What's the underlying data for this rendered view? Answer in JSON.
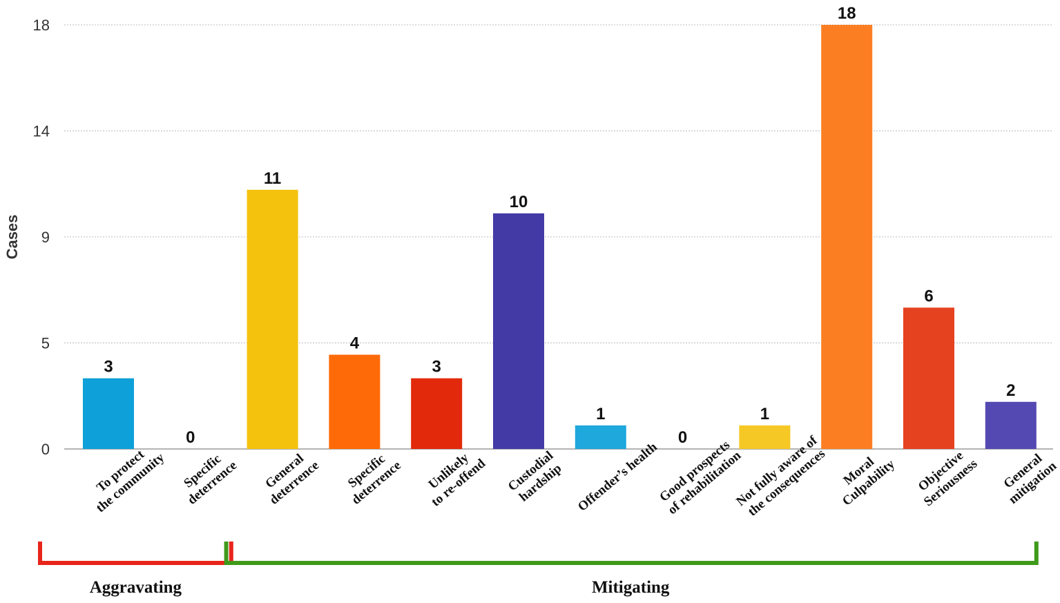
{
  "chart_data": {
    "type": "bar",
    "title": "",
    "xlabel": "",
    "ylabel": "Cases",
    "ylim": [
      0,
      18
    ],
    "yticks": [
      "0",
      "5",
      "9",
      "14",
      "18"
    ],
    "grid": true,
    "categories": [
      [
        "To protect",
        "the community"
      ],
      [
        "Specific",
        "deterrence"
      ],
      [
        "General",
        "deterrence"
      ],
      [
        "Specific",
        "deterrence"
      ],
      [
        "Unlikely",
        "to re-offend"
      ],
      [
        "Custodial",
        "hardship"
      ],
      [
        "Offender’s health"
      ],
      [
        "Good prospects",
        "of rehabilitation"
      ],
      [
        "Not fully aware of",
        "the consequences"
      ],
      [
        "Moral",
        "Culpability"
      ],
      [
        "Objective",
        "Seriousness"
      ],
      [
        "General",
        "mitigation"
      ]
    ],
    "values": [
      3,
      0,
      11,
      4,
      3,
      10,
      1,
      0,
      1,
      18,
      6,
      2
    ],
    "colors": [
      "#0ea0d8",
      "#f4c20d",
      "#f4c20d",
      "#ff6a08",
      "#e2290b",
      "#433aa6",
      "#1ea8dc",
      "#f4c20d",
      "#f6c825",
      "#fb7f22",
      "#e5421f",
      "#5449b2"
    ],
    "groups": [
      {
        "label": "Aggravating",
        "from": 0,
        "to": 1,
        "color": "#e8251b"
      },
      {
        "label": "Mitigating",
        "from": 2,
        "to": 11,
        "color": "#3f9a1a"
      }
    ]
  }
}
